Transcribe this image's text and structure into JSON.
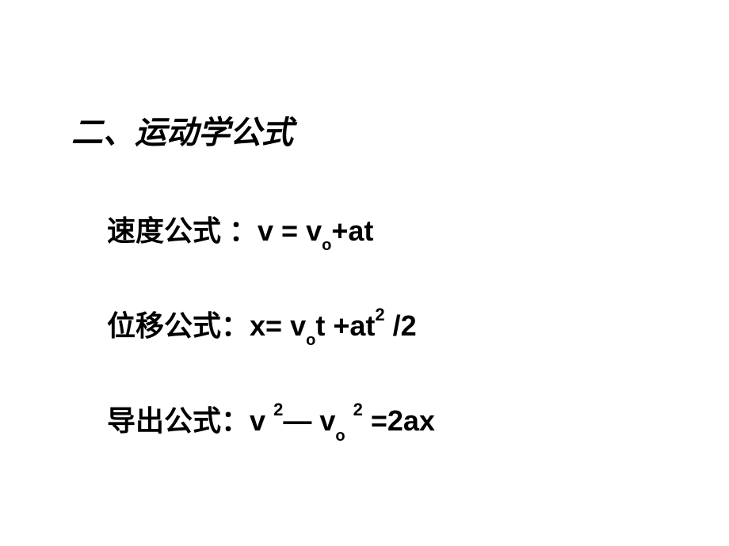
{
  "heading": "二、运动学公式",
  "formulas": {
    "velocity": {
      "label": "速度公式 ：",
      "var1": "v",
      "eq": " = ",
      "var2_base": "v",
      "var2_sub": "o",
      "plus": "+",
      "term": "at"
    },
    "displacement": {
      "label": "位移公式：",
      "var1": "x",
      "eq": "= ",
      "var2_base": "v",
      "var2_sub": "o",
      "var3": "t ",
      "plus": "+",
      "term_base": "at",
      "term_sup": "2",
      "divide": " /2"
    },
    "derived": {
      "label": "导出公式：",
      "var1_base": "v",
      "var1_sup": "2",
      "minus": "— ",
      "var2_base": "v",
      "var2_sub": "o",
      "var2_sup": "2",
      "eq": " =",
      "term": "2ax"
    }
  },
  "colors": {
    "background": "#ffffff",
    "text": "#000000"
  },
  "fonts": {
    "heading_family": "KaiTi",
    "body_family": "SimHei",
    "heading_size": 40,
    "body_size": 36,
    "sub_size": 20,
    "sup_size": 22
  }
}
